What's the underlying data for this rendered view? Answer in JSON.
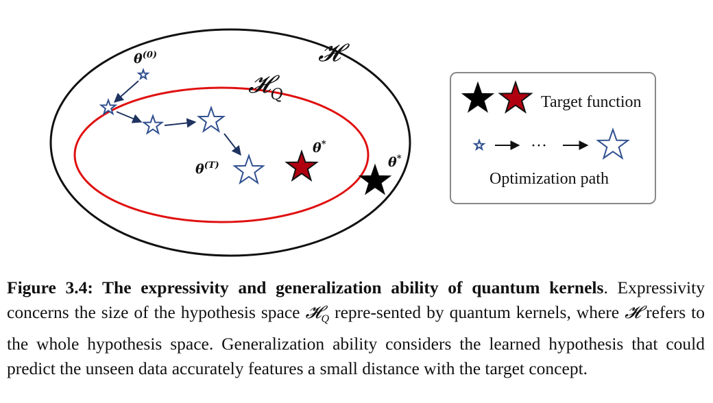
{
  "diagram": {
    "outer_space_label": "𝓗",
    "inner_space_label": "𝓗",
    "inner_space_sub": "Q",
    "theta0_base": "θ",
    "theta0_sup": "(0)",
    "thetaT_base": "θ",
    "thetaT_sup": "(T)",
    "theta_star_inner_base": "θ",
    "theta_star_inner_sup": "*",
    "theta_star_outer_base": "θ",
    "theta_star_outer_sup": "*",
    "colors": {
      "outer_ellipse": "#111111",
      "inner_ellipse": "#e01010",
      "path_star": "#2f4f8f",
      "target_red": "#b00010",
      "target_black": "#000000",
      "legend_border": "#888888"
    }
  },
  "legend": {
    "target_label": "Target function",
    "ellipsis": "···",
    "path_label": "Optimization path"
  },
  "caption": {
    "label": "Figure 3.4: The expressivity and generalization ability of quantum kernels",
    "text_1": ". Expressivity concerns the size of the hypothesis space ",
    "hq_base": "𝓗",
    "hq_sub": "Q",
    "text_2": " repre-sented by quantum kernels, where ",
    "h_sym": "𝓗",
    "text_3": " refers to the whole hypothesis space. Generalization ability considers the learned hypothesis that could predict the unseen data accurately features a small distance with the target concept."
  }
}
